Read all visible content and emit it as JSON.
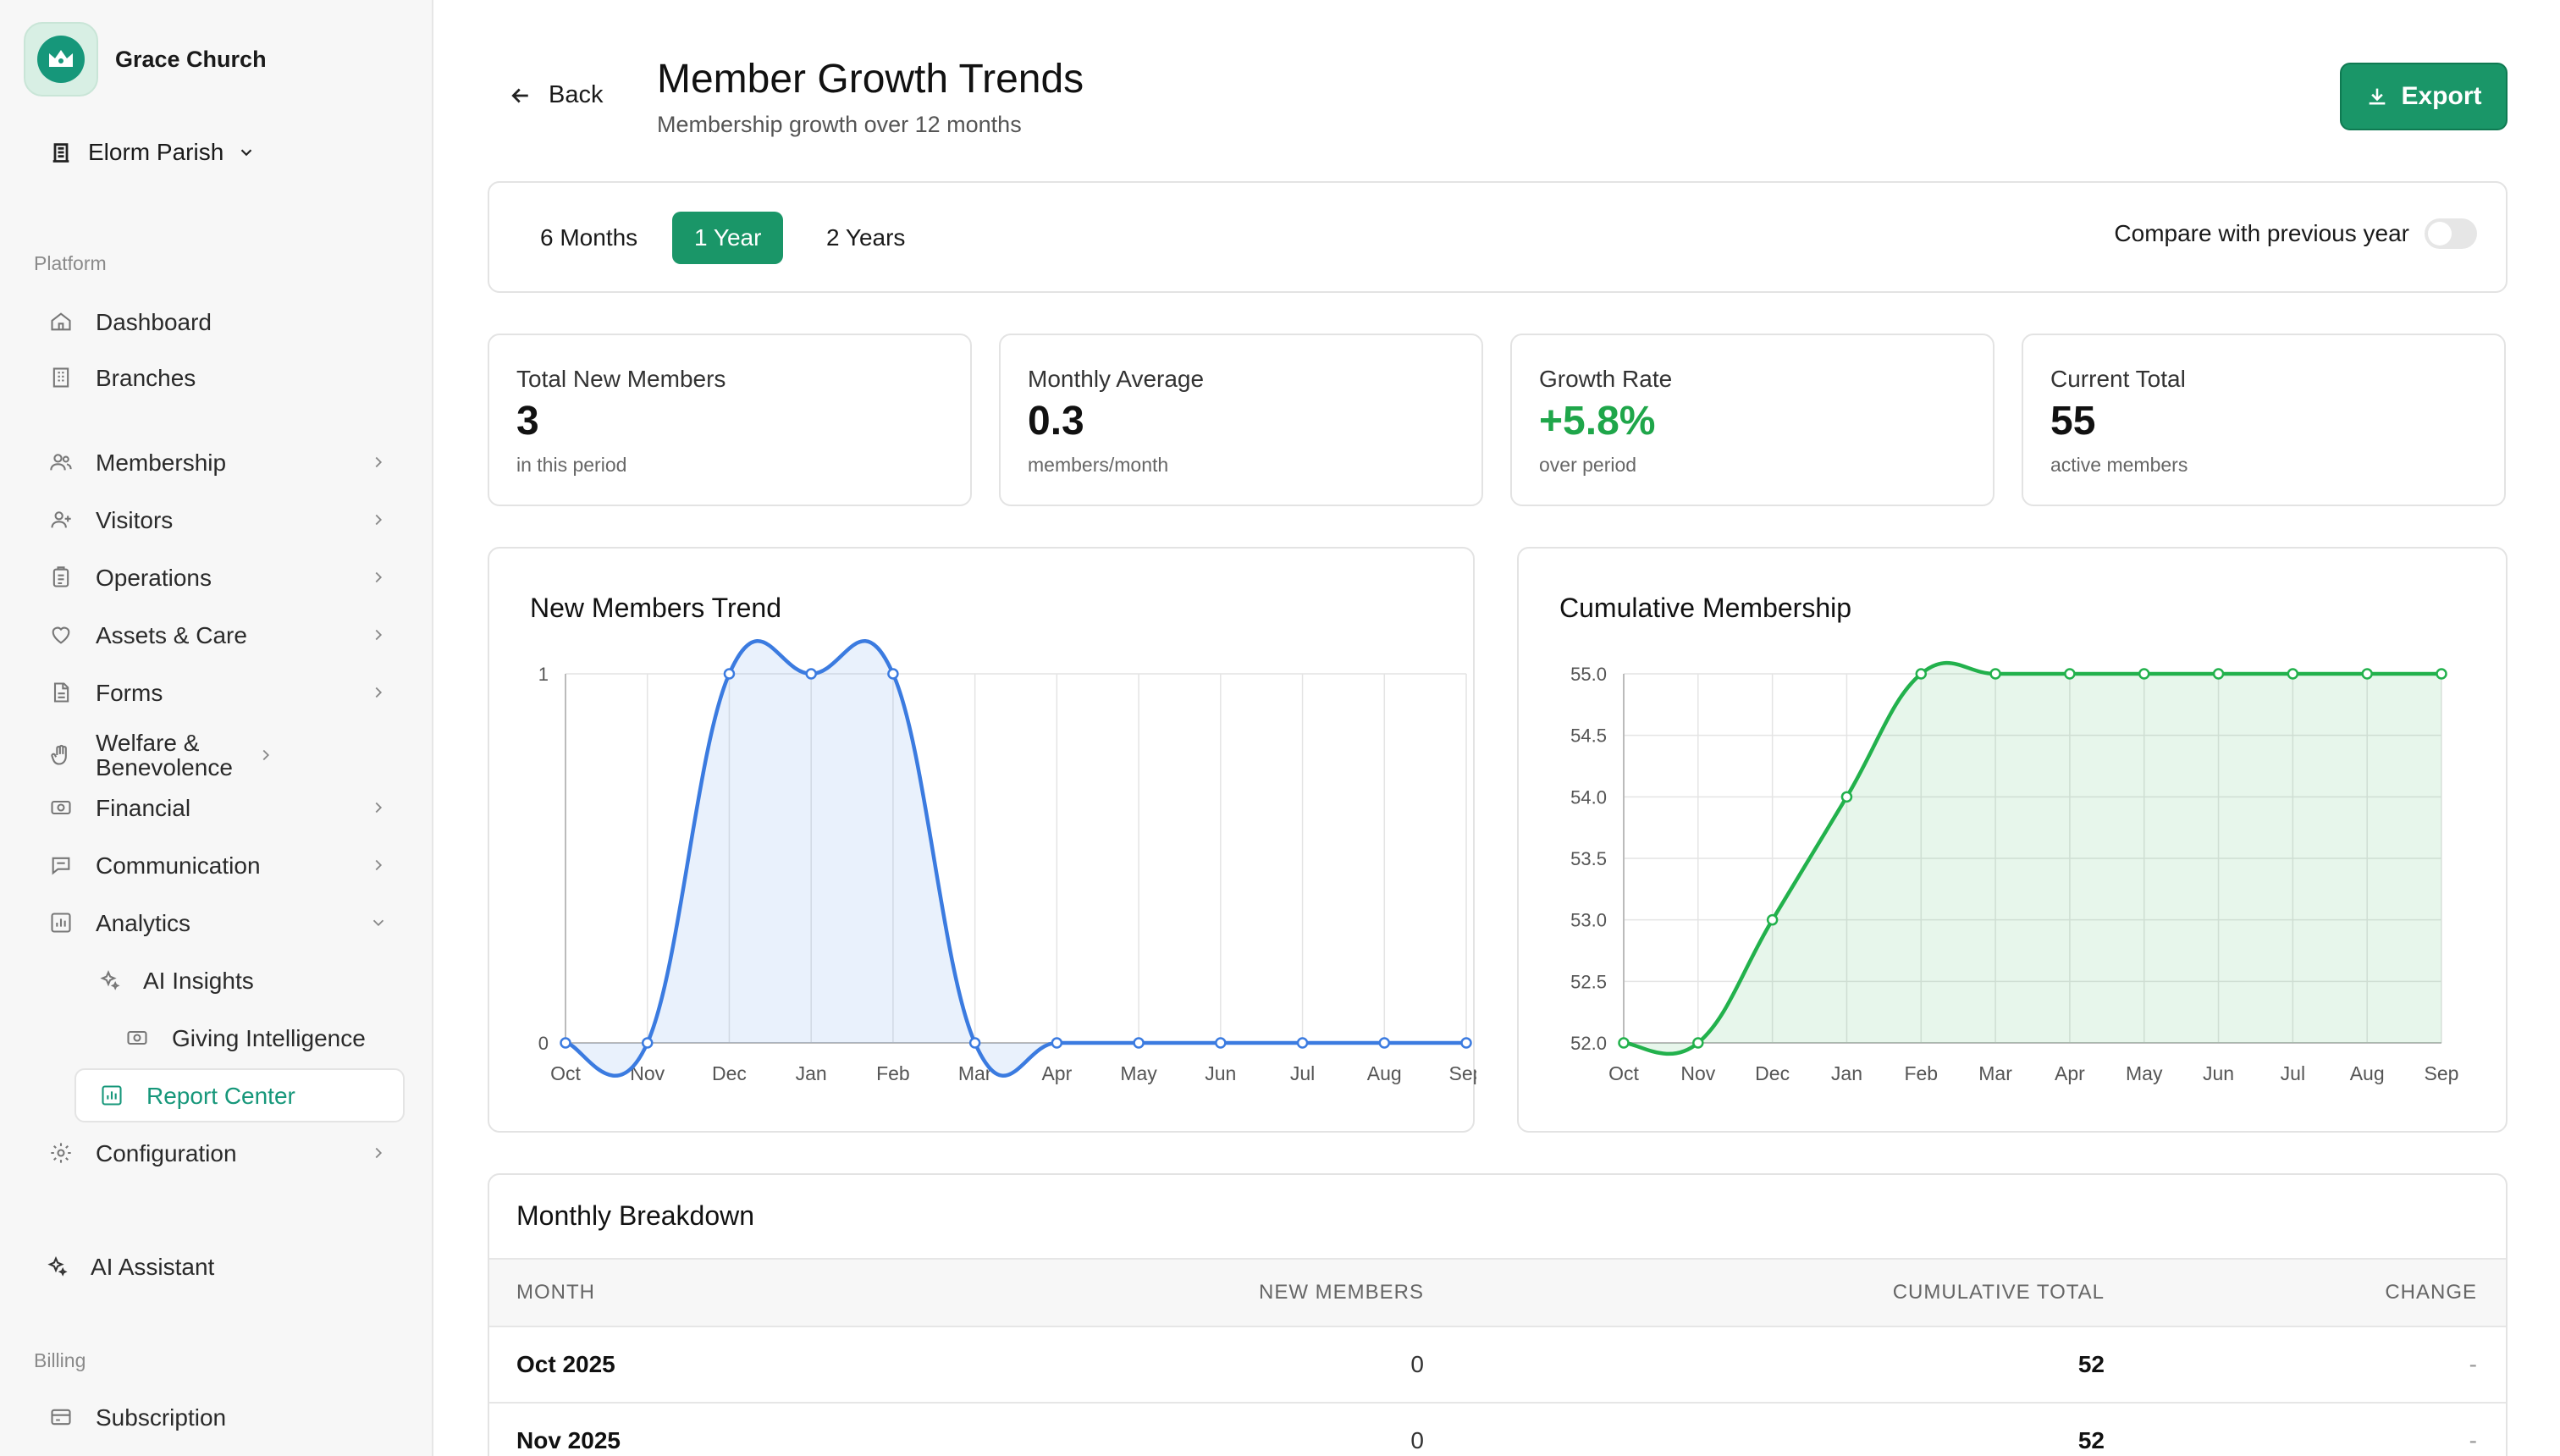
{
  "sidebar": {
    "brand": "Grace Church",
    "parish": "Elorm Parish",
    "platform_label": "Platform",
    "billing_label": "Billing",
    "items": {
      "dashboard": "Dashboard",
      "branches": "Branches",
      "membership": "Membership",
      "visitors": "Visitors",
      "operations": "Operations",
      "assets": "Assets & Care",
      "forms": "Forms",
      "welfare": "Welfare & Benevolence",
      "financial": "Financial",
      "communication": "Communication",
      "analytics": "Analytics",
      "ai_insights": "AI Insights",
      "giving": "Giving Intelligence",
      "report_center": "Report Center",
      "configuration": "Configuration",
      "ai_assistant": "AI Assistant",
      "subscription": "Subscription"
    }
  },
  "header": {
    "back": "Back",
    "title": "Member Growth Trends",
    "subtitle": "Membership growth over 12 months",
    "export": "Export"
  },
  "filters": {
    "ranges": [
      "6 Months",
      "1 Year",
      "2 Years"
    ],
    "selected": "1 Year",
    "compare_label": "Compare with previous year",
    "compare_on": false
  },
  "stats": [
    {
      "label": "Total New Members",
      "value": "3",
      "note": "in this period"
    },
    {
      "label": "Monthly Average",
      "value": "0.3",
      "note": "members/month"
    },
    {
      "label": "Growth Rate",
      "value": "+5.8%",
      "note": "over period"
    },
    {
      "label": "Current Total",
      "value": "55",
      "note": "active members"
    }
  ],
  "colors": {
    "accent": "#1a9668",
    "blue_line": "#3b7be0",
    "green_line": "#22b14c"
  },
  "chart_data": [
    {
      "type": "line",
      "title": "New Members Trend",
      "categories": [
        "Oct",
        "Nov",
        "Dec",
        "Jan",
        "Feb",
        "Mar",
        "Apr",
        "May",
        "Jun",
        "Jul",
        "Aug",
        "Sep"
      ],
      "series": [
        {
          "values": [
            0,
            0,
            1,
            1,
            1,
            0,
            0,
            0,
            0,
            0,
            0,
            0
          ]
        }
      ],
      "ylim": [
        0,
        1
      ],
      "yticks": [
        "0",
        "1"
      ],
      "area": true,
      "grid": true
    },
    {
      "type": "line",
      "title": "Cumulative Membership",
      "categories": [
        "Oct",
        "Nov",
        "Dec",
        "Jan",
        "Feb",
        "Mar",
        "Apr",
        "May",
        "Jun",
        "Jul",
        "Aug",
        "Sep"
      ],
      "series": [
        {
          "values": [
            52,
            52,
            53,
            54,
            55,
            55,
            55,
            55,
            55,
            55,
            55,
            55
          ]
        }
      ],
      "ylim": [
        52,
        55
      ],
      "yticks": [
        "52.0",
        "52.5",
        "53.0",
        "53.5",
        "54.0",
        "54.5",
        "55.0"
      ],
      "area": true,
      "grid": true
    }
  ],
  "breakdown": {
    "title": "Monthly Breakdown",
    "columns": [
      "MONTH",
      "NEW MEMBERS",
      "CUMULATIVE TOTAL",
      "CHANGE"
    ],
    "rows": [
      {
        "month": "Oct 2025",
        "new": "0",
        "cumulative": "52",
        "change": "-"
      },
      {
        "month": "Nov 2025",
        "new": "0",
        "cumulative": "52",
        "change": "-"
      }
    ]
  }
}
